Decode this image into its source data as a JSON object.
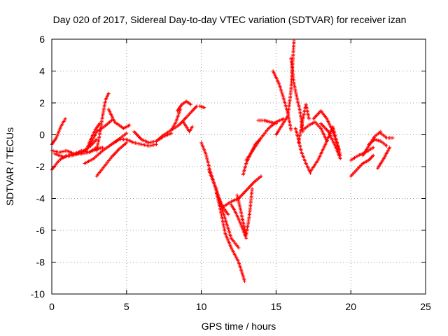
{
  "chart_data": {
    "type": "scatter",
    "title": "Day 020 of 2017, Sidereal Day-to-day VTEC variation (SDTVAR) for receiver izan",
    "xlabel": "GPS time / hours",
    "ylabel": "SDTVAR / TECUs",
    "xlim": [
      0,
      25
    ],
    "ylim": [
      -10,
      6
    ],
    "xticks": [
      "0",
      "5",
      "10",
      "15",
      "20",
      "25"
    ],
    "yticks": [
      "-10",
      "-8",
      "-6",
      "-4",
      "-2",
      "0",
      "2",
      "4",
      "6"
    ],
    "grid": true,
    "marker": "+",
    "color": "#ff0000",
    "series": [
      {
        "x": [
          0.0,
          0.3,
          0.6,
          0.9
        ],
        "y": [
          -0.6,
          -0.2,
          0.5,
          1.0
        ]
      },
      {
        "x": [
          0.0,
          0.5,
          1.0,
          1.5,
          2.0,
          2.5,
          3.0,
          3.4
        ],
        "y": [
          -1.0,
          -1.1,
          -1.0,
          -1.2,
          -1.0,
          -1.1,
          -0.9,
          -0.8
        ]
      },
      {
        "x": [
          0.0,
          0.5,
          1.0,
          1.5,
          2.0,
          2.5,
          3.0
        ],
        "y": [
          -2.2,
          -1.6,
          -1.3,
          -1.2,
          -1.2,
          -1.1,
          -0.8
        ]
      },
      {
        "x": [
          0.2,
          0.8,
          1.4,
          2.0,
          2.6,
          3.0
        ],
        "y": [
          -1.2,
          -1.4,
          -1.3,
          -1.1,
          -0.7,
          -0.3
        ]
      },
      {
        "x": [
          2.5,
          2.8,
          3.0,
          3.5,
          4.0
        ],
        "y": [
          -0.7,
          -0.2,
          0.2,
          0.5,
          0.9
        ]
      },
      {
        "x": [
          2.3,
          2.6,
          2.9,
          3.2
        ],
        "y": [
          -1.0,
          -0.3,
          0.3,
          0.7
        ]
      },
      {
        "x": [
          3.0,
          3.2,
          3.4,
          3.6,
          3.8
        ],
        "y": [
          -1.0,
          0.0,
          1.2,
          2.2,
          2.6
        ]
      },
      {
        "x": [
          3.0,
          3.5,
          4.0,
          4.5,
          5.0
        ],
        "y": [
          -2.6,
          -2.0,
          -1.4,
          -0.9,
          -0.5
        ]
      },
      {
        "x": [
          2.2,
          2.8,
          3.4,
          4.0,
          4.6,
          5.0
        ],
        "y": [
          -1.8,
          -1.5,
          -1.0,
          -0.6,
          -0.2,
          0.1
        ]
      },
      {
        "x": [
          3.8,
          4.0,
          4.2,
          4.5,
          4.8,
          5.2
        ],
        "y": [
          1.6,
          1.2,
          0.8,
          0.6,
          0.4,
          0.6
        ]
      },
      {
        "x": [
          4.0,
          4.5,
          5.0,
          5.5,
          6.0,
          6.5,
          7.0
        ],
        "y": [
          -0.6,
          -0.3,
          -0.3,
          -0.5,
          -0.6,
          -0.7,
          -0.6
        ]
      },
      {
        "x": [
          5.5,
          6.0,
          6.5,
          7.0,
          7.5,
          8.0
        ],
        "y": [
          0.2,
          -0.3,
          -0.5,
          -0.4,
          -0.1,
          0.1
        ]
      },
      {
        "x": [
          7.0,
          7.5,
          8.0,
          8.3,
          8.6
        ],
        "y": [
          -0.4,
          0.0,
          0.3,
          0.8,
          1.6
        ]
      },
      {
        "x": [
          8.0,
          8.5,
          9.0,
          9.4,
          9.7
        ],
        "y": [
          0.3,
          0.6,
          1.1,
          1.5,
          1.8
        ]
      },
      {
        "x": [
          8.4,
          8.7,
          9.0,
          9.3
        ],
        "y": [
          1.5,
          1.9,
          2.1,
          1.9
        ]
      },
      {
        "x": [
          8.8,
          9.0,
          9.2,
          9.4
        ],
        "y": [
          0.8,
          0.5,
          0.2,
          0.5
        ]
      },
      {
        "x": [
          9.9,
          10.2
        ],
        "y": [
          1.8,
          1.7
        ]
      },
      {
        "x": [
          10.0,
          10.3,
          10.6,
          11.0,
          11.4,
          11.8
        ],
        "y": [
          -0.5,
          -1.2,
          -2.3,
          -3.5,
          -4.5,
          -5.0
        ]
      },
      {
        "x": [
          10.5,
          11.0,
          11.5,
          12.0,
          12.5
        ],
        "y": [
          -2.2,
          -3.4,
          -5.0,
          -6.5,
          -7.1
        ]
      },
      {
        "x": [
          11.0,
          11.3,
          11.6,
          12.0,
          12.5,
          12.9
        ],
        "y": [
          -3.6,
          -4.8,
          -6.2,
          -7.1,
          -8.0,
          -9.2
        ]
      },
      {
        "x": [
          11.5,
          12.0,
          12.5,
          13.0,
          13.5,
          14.0
        ],
        "y": [
          -4.5,
          -4.2,
          -4.0,
          -3.5,
          -3.0,
          -2.6
        ]
      },
      {
        "x": [
          12.0,
          12.2,
          12.5,
          12.8,
          13.0
        ],
        "y": [
          -4.4,
          -4.7,
          -5.3,
          -6.0,
          -6.5
        ]
      },
      {
        "x": [
          12.4,
          12.6,
          12.8,
          13.0,
          13.2,
          13.4
        ],
        "y": [
          -3.8,
          -4.6,
          -5.5,
          -6.3,
          -5.2,
          -3.4
        ]
      },
      {
        "x": [
          12.8,
          13.0,
          13.3,
          13.6,
          14.0
        ],
        "y": [
          -2.5,
          -1.8,
          -1.2,
          -0.6,
          -0.2
        ]
      },
      {
        "x": [
          13.0,
          13.5,
          14.0,
          14.5,
          15.0,
          15.5
        ],
        "y": [
          -1.6,
          -0.9,
          -0.2,
          0.4,
          0.8,
          1.0
        ]
      },
      {
        "x": [
          13.8,
          14.2,
          14.6,
          15.0
        ],
        "y": [
          0.9,
          0.9,
          0.8,
          0.7
        ]
      },
      {
        "x": [
          14.8,
          15.2,
          15.5,
          15.8,
          16.0
        ],
        "y": [
          4.0,
          3.2,
          2.3,
          1.3,
          0.3
        ]
      },
      {
        "x": [
          15.0,
          15.4,
          15.8,
          16.0,
          16.2
        ],
        "y": [
          0.0,
          0.6,
          1.2,
          2.8,
          5.9
        ]
      },
      {
        "x": [
          16.0,
          16.2,
          16.4,
          16.6,
          16.8
        ],
        "y": [
          4.8,
          3.2,
          2.3,
          1.5,
          0.2
        ]
      },
      {
        "x": [
          16.3,
          16.5,
          16.7,
          17.0,
          17.3
        ],
        "y": [
          0.4,
          -0.3,
          -1.1,
          -1.8,
          -2.4
        ]
      },
      {
        "x": [
          16.5,
          16.8,
          17.0,
          17.2
        ],
        "y": [
          -0.5,
          1.0,
          1.9,
          1.0
        ]
      },
      {
        "x": [
          16.8,
          17.2,
          17.6,
          18.0,
          18.4
        ],
        "y": [
          0.3,
          0.6,
          0.8,
          0.4,
          -0.4
        ]
      },
      {
        "x": [
          17.3,
          17.8,
          18.3,
          18.8,
          19.3
        ],
        "y": [
          -2.3,
          -1.6,
          -0.6,
          0.5,
          -1.3
        ]
      },
      {
        "x": [
          17.5,
          18.0,
          18.4,
          18.8,
          19.2
        ],
        "y": [
          1.0,
          1.5,
          1.0,
          0.2,
          -0.9
        ]
      },
      {
        "x": [
          18.0,
          18.5,
          19.0,
          19.3
        ],
        "y": [
          0.7,
          0.2,
          -0.8,
          -1.5
        ]
      },
      {
        "x": [
          20.0,
          20.4,
          20.8,
          21.2,
          21.5
        ],
        "y": [
          -2.6,
          -2.2,
          -1.8,
          -1.6,
          -1.3
        ]
      },
      {
        "x": [
          20.0,
          20.5,
          21.0,
          21.5
        ],
        "y": [
          -1.6,
          -1.3,
          -1.1,
          -0.8
        ]
      },
      {
        "x": [
          20.8,
          21.2,
          21.6,
          22.0
        ],
        "y": [
          -1.3,
          -0.7,
          -0.1,
          0.2
        ]
      },
      {
        "x": [
          21.2,
          21.6,
          22.0,
          22.4
        ],
        "y": [
          -0.6,
          -0.3,
          -0.4,
          -0.7
        ]
      },
      {
        "x": [
          21.8,
          22.2,
          22.6
        ],
        "y": [
          -2.1,
          -1.5,
          -0.8
        ]
      },
      {
        "x": [
          22.0,
          22.4,
          22.8
        ],
        "y": [
          0.1,
          -0.2,
          -0.2
        ]
      }
    ]
  }
}
